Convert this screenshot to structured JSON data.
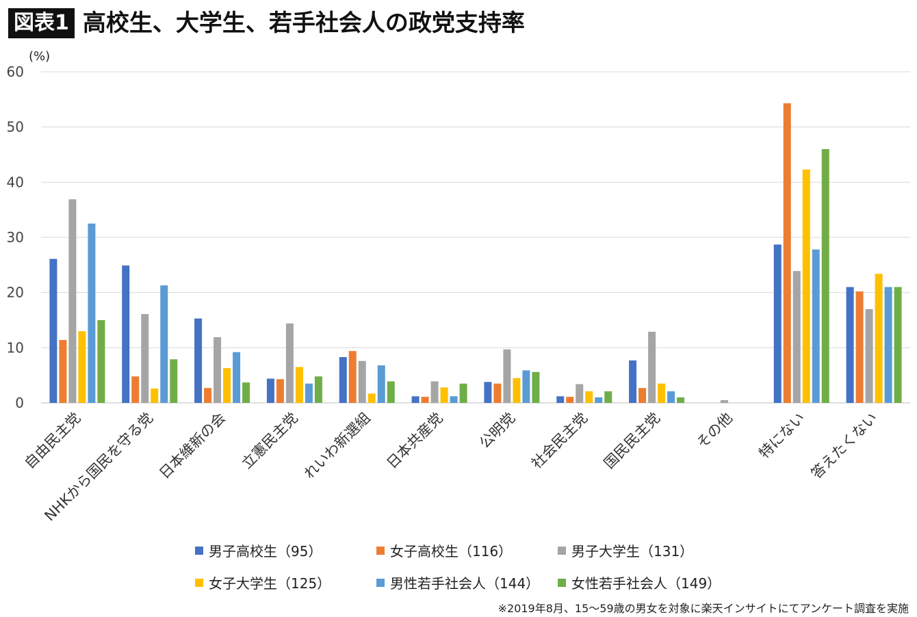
{
  "header": {
    "badge": "図表1",
    "title": "高校生、大学生、若手社会人の政党支持率"
  },
  "footnote": "※2019年8月、15〜59歳の男女を対象に楽天インサイトにてアンケート調査を実施",
  "chart_data": {
    "type": "bar",
    "title": "高校生、大学生、若手社会人の政党支持率",
    "ylabel": "(%)",
    "ylim": [
      0,
      60
    ],
    "yticks": [
      0,
      10,
      20,
      30,
      40,
      50,
      60
    ],
    "grid": true,
    "legend_position": "bottom",
    "categories": [
      "自由民主党",
      "NHKから国民を守る党",
      "日本維新の会",
      "立憲民主党",
      "れいわ新選組",
      "日本共産党",
      "公明党",
      "社会民主党",
      "国民民主党",
      "その他",
      "特にない",
      "答えたくない"
    ],
    "series": [
      {
        "name": "男子高校生（95）",
        "color": "#4472C4",
        "values": [
          26.1,
          24.9,
          15.3,
          4.4,
          8.3,
          1.2,
          3.8,
          1.2,
          7.7,
          0,
          28.7,
          21.0
        ]
      },
      {
        "name": "女子高校生（116）",
        "color": "#ED7D31",
        "values": [
          11.4,
          4.8,
          2.7,
          4.3,
          9.4,
          1.1,
          3.5,
          1.1,
          2.7,
          0,
          54.3,
          20.2
        ]
      },
      {
        "name": "男子大学生（131）",
        "color": "#A5A5A5",
        "values": [
          36.9,
          16.1,
          11.9,
          14.4,
          7.6,
          3.9,
          9.7,
          3.4,
          12.9,
          0.5,
          23.9,
          17.0
        ]
      },
      {
        "name": "女子大学生（125）",
        "color": "#FFC000",
        "values": [
          13.0,
          2.6,
          6.3,
          6.5,
          1.7,
          2.8,
          4.5,
          2.1,
          3.5,
          0,
          42.3,
          23.4
        ]
      },
      {
        "name": "男性若手社会人（144）",
        "color": "#5B9BD5",
        "values": [
          32.5,
          21.3,
          9.2,
          3.5,
          6.8,
          1.2,
          5.9,
          1.0,
          2.1,
          0,
          27.8,
          21.0
        ]
      },
      {
        "name": "女性若手社会人（149）",
        "color": "#70AD47",
        "values": [
          15.0,
          7.9,
          3.7,
          4.8,
          3.9,
          3.5,
          5.6,
          2.1,
          1.0,
          0,
          46.0,
          21.0
        ]
      }
    ]
  }
}
